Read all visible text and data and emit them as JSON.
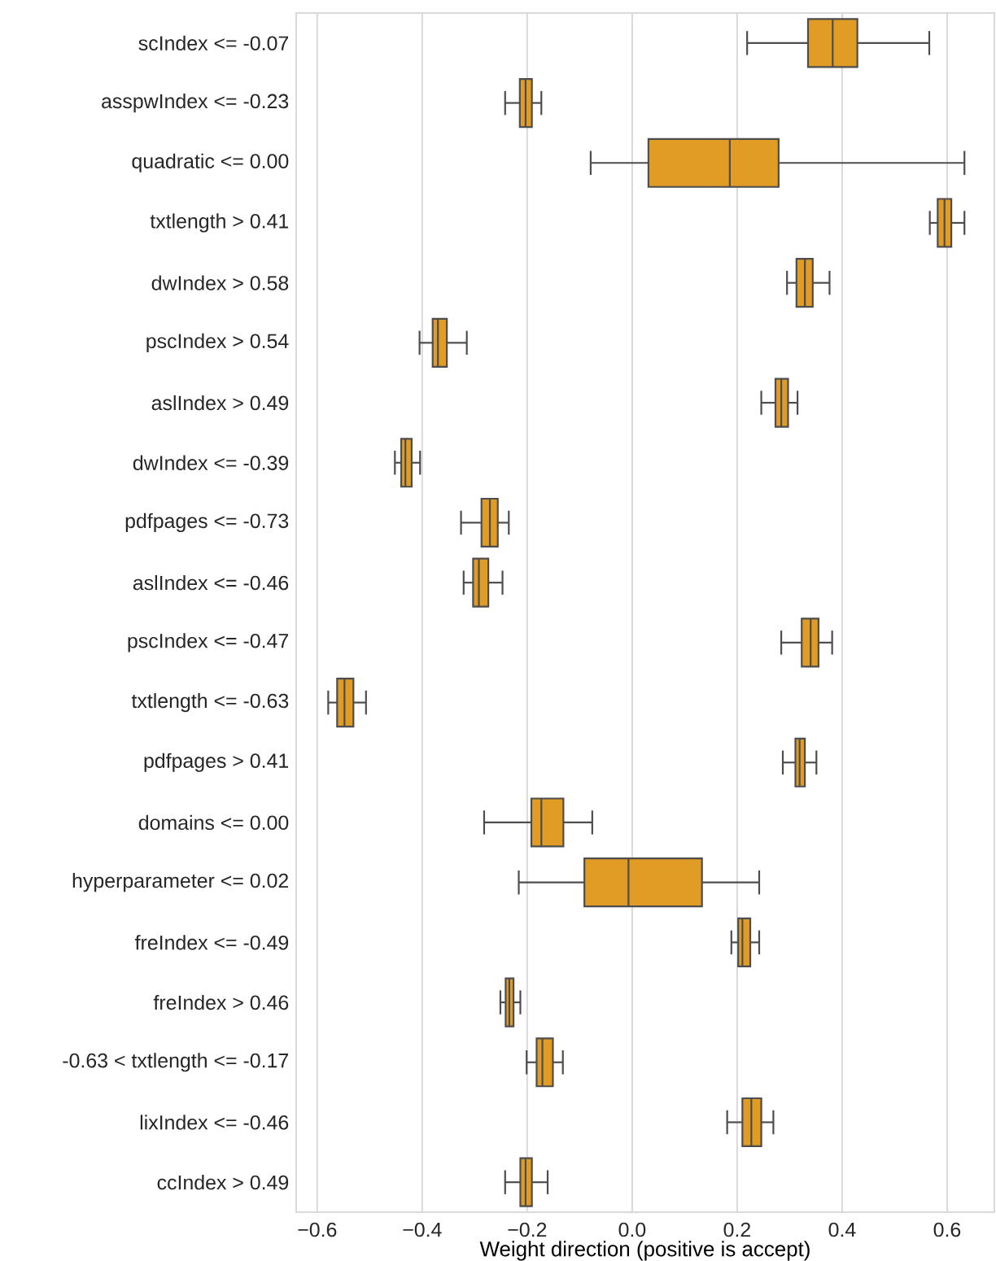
{
  "chart_data": {
    "type": "box",
    "orientation": "horizontal",
    "xlabel": "Weight direction (positive is accept)",
    "categories": [
      "scIndex <= -0.07",
      "asspwIndex <= -0.23",
      "quadratic <= 0.00",
      "txtlength > 0.41",
      "dwIndex > 0.58",
      "pscIndex > 0.54",
      "aslIndex > 0.49",
      "dwIndex <= -0.39",
      "pdfpages <= -0.73",
      "aslIndex <= -0.46",
      "pscIndex <= -0.47",
      "txtlength <= -0.63",
      "pdfpages > 0.41",
      "domains <= 0.00",
      "hyperparameter <= 0.02",
      "freIndex <= -0.49",
      "freIndex > 0.46",
      "-0.63 < txtlength <= -0.17",
      "lixIndex <= -0.46",
      "ccIndex > 0.49"
    ],
    "color": "#e09c24",
    "boxes": [
      {
        "low": 0.219,
        "q1": 0.335,
        "median": 0.382,
        "q3": 0.429,
        "high": 0.566
      },
      {
        "low": -0.242,
        "q1": -0.214,
        "median": -0.203,
        "q3": -0.191,
        "high": -0.173
      },
      {
        "low": -0.079,
        "q1": 0.031,
        "median": 0.186,
        "q3": 0.279,
        "high": 0.633
      },
      {
        "low": 0.567,
        "q1": 0.582,
        "median": 0.595,
        "q3": 0.608,
        "high": 0.633
      },
      {
        "low": 0.295,
        "q1": 0.313,
        "median": 0.329,
        "q3": 0.344,
        "high": 0.376
      },
      {
        "low": -0.405,
        "q1": -0.38,
        "median": -0.37,
        "q3": -0.353,
        "high": -0.315
      },
      {
        "low": 0.246,
        "q1": 0.273,
        "median": 0.284,
        "q3": 0.297,
        "high": 0.315
      },
      {
        "low": -0.452,
        "q1": -0.44,
        "median": -0.432,
        "q3": -0.42,
        "high": -0.404
      },
      {
        "low": -0.326,
        "q1": -0.287,
        "median": -0.271,
        "q3": -0.256,
        "high": -0.235
      },
      {
        "low": -0.321,
        "q1": -0.303,
        "median": -0.292,
        "q3": -0.274,
        "high": -0.247
      },
      {
        "low": 0.284,
        "q1": 0.323,
        "median": 0.34,
        "q3": 0.355,
        "high": 0.381
      },
      {
        "low": -0.579,
        "q1": -0.562,
        "median": -0.548,
        "q3": -0.531,
        "high": -0.507
      },
      {
        "low": 0.287,
        "q1": 0.311,
        "median": 0.319,
        "q3": 0.329,
        "high": 0.351
      },
      {
        "low": -0.282,
        "q1": -0.192,
        "median": -0.173,
        "q3": -0.131,
        "high": -0.076
      },
      {
        "low": -0.216,
        "q1": -0.091,
        "median": -0.007,
        "q3": 0.133,
        "high": 0.242
      },
      {
        "low": 0.189,
        "q1": 0.202,
        "median": 0.21,
        "q3": 0.225,
        "high": 0.242
      },
      {
        "low": -0.251,
        "q1": -0.241,
        "median": -0.234,
        "q3": -0.226,
        "high": -0.213
      },
      {
        "low": -0.201,
        "q1": -0.182,
        "median": -0.171,
        "q3": -0.151,
        "high": -0.132
      },
      {
        "low": 0.181,
        "q1": 0.21,
        "median": 0.227,
        "q3": 0.246,
        "high": 0.269
      },
      {
        "low": -0.242,
        "q1": -0.213,
        "median": -0.203,
        "q3": -0.191,
        "high": -0.161
      }
    ],
    "xlim": [
      -0.64,
      0.69
    ],
    "xticks": [
      {
        "value": -0.6,
        "label": "−0.6"
      },
      {
        "value": -0.4,
        "label": "−0.4"
      },
      {
        "value": -0.2,
        "label": "−0.2"
      },
      {
        "value": 0,
        "label": "0.0"
      },
      {
        "value": 0.2,
        "label": "0.2"
      },
      {
        "value": 0.4,
        "label": "0.4"
      },
      {
        "value": 0.6,
        "label": "0.6"
      }
    ],
    "grid": "x"
  }
}
